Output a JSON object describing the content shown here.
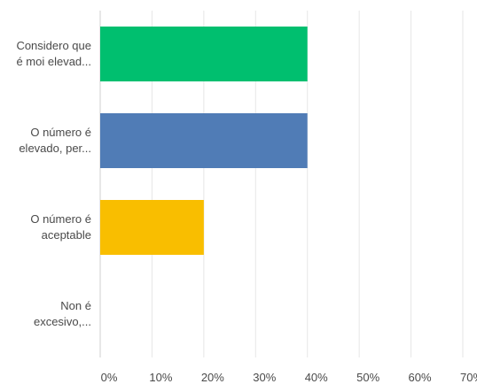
{
  "chart_data": {
    "type": "bar",
    "orientation": "horizontal",
    "categories": [
      [
        "Considero que",
        "é moi elevad..."
      ],
      [
        "O número é",
        "elevado, per..."
      ],
      [
        "O número é",
        "aceptable"
      ],
      [
        "Non é",
        "excesivo,..."
      ]
    ],
    "values": [
      40,
      40,
      20,
      0
    ],
    "colors": [
      "#00bf6f",
      "#507cb6",
      "#f9be00",
      "#6bc8cd"
    ],
    "xlim": [
      0,
      70
    ],
    "xticks": [
      0,
      10,
      20,
      30,
      40,
      50,
      60,
      70
    ],
    "tick_suffix": "%",
    "grid": true,
    "grid_color": "#e6e6e6",
    "axis_color": "#cfcfcf",
    "title": "",
    "xlabel": "",
    "ylabel": ""
  }
}
